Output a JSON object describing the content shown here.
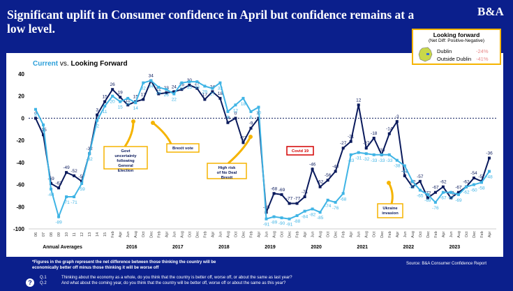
{
  "header": {
    "title": "Significant uplift in Consumer confidence in April but confidence remains at a low level.",
    "logo": "B&A"
  },
  "legend": {
    "title": "Looking forward",
    "subtitle": "(Net Diff: Positive-Negative)",
    "dublin_label": "Dublin",
    "dublin_value": "-24%",
    "outside_label": "Outside Dublin",
    "outside_value": "-41%"
  },
  "footer": {
    "note": "*Figures in the graph represent the net difference between those thinking the country will be economically better off minus those thinking it will be worse off",
    "source": "Source: B&A Consumer Confidence Report",
    "q1_label": "Q.1",
    "q1": "Thinking about the economy as a whole, do you think that the country is better off, worse off, or about the same as last year?",
    "q2_label": "Q.2",
    "q2": "And what about the coming year, do you think that the country will be better off, worse off or about the same as this year?",
    "icon": "?"
  },
  "chart_data": {
    "type": "line",
    "title": "Current vs. Looking Forward",
    "title_current": "Current",
    "title_vs": "vs.",
    "title_forward": "Looking Forward",
    "ylim": [
      -100,
      40
    ],
    "yticks": [
      40,
      20,
      0,
      -20,
      -40,
      -60,
      -80,
      -100
    ],
    "colors": {
      "current": "#0a1a5c",
      "forward": "#3fb4e5",
      "axis_text": "#000"
    },
    "x": [
      "06",
      "07",
      "08",
      "09",
      "10",
      "11",
      "12",
      "13",
      "14",
      "15",
      "Feb",
      "Apr",
      "Jun",
      "Aug",
      "Oct",
      "Dec",
      "Feb",
      "Apr",
      "Jun",
      "Aug",
      "Oct",
      "Dec",
      "Feb",
      "Apr",
      "Jun",
      "Aug",
      "Oct",
      "Dec",
      "Feb",
      "Apr",
      "Jun",
      "Aug",
      "Oct",
      "Dec",
      "Feb",
      "Apr",
      "Jun",
      "Aug",
      "Oct",
      "Dec",
      "Feb",
      "Apr",
      "Jun",
      "Aug",
      "Oct",
      "Dec",
      "Feb",
      "Apr",
      "Jun",
      "Aug",
      "Oct",
      "Dec",
      "Feb",
      "Apr",
      "Jun",
      "Aug",
      "Oct",
      "Dec",
      "Feb",
      "Apr"
    ],
    "year_labels": [
      {
        "label": "Annual Averages",
        "at": 3.5
      },
      {
        "label": "2016",
        "at": 12.5
      },
      {
        "label": "2017",
        "at": 18.5
      },
      {
        "label": "2018",
        "at": 24.5
      },
      {
        "label": "2019",
        "at": 30.5
      },
      {
        "label": "2020",
        "at": 36.5
      },
      {
        "label": "2021",
        "at": 42.5
      },
      {
        "label": "2022",
        "at": 48.5
      },
      {
        "label": "2023",
        "at": 54.5
      }
    ],
    "series": [
      {
        "name": "Current",
        "values": [
          0,
          -15,
          -59,
          -63,
          -49,
          -52,
          -57,
          -32,
          3,
          15,
          26,
          19,
          12,
          15,
          17,
          34,
          22,
          23,
          24,
          26,
          30,
          27,
          17,
          24,
          18,
          -4,
          0,
          -22,
          -9,
          0,
          -85,
          -68,
          -69,
          -77,
          -77,
          -71,
          -46,
          -62,
          -56,
          -48,
          -27,
          -21,
          12,
          -27,
          -18,
          -33,
          -14,
          -3,
          -52,
          -62,
          -57,
          -72,
          -67,
          -62,
          -72,
          -67,
          -62,
          -54,
          -57,
          -36
        ],
        "labels": [
          "0",
          "-15",
          "-59",
          "-63",
          "-49",
          "-52",
          "-57",
          "-32",
          "3",
          "15",
          "26",
          "19",
          "12",
          "15",
          "17",
          "34",
          "22",
          "23",
          "24",
          "26",
          "30",
          "27",
          "17",
          "24",
          "18",
          "-4",
          "0",
          "-22",
          "-9",
          "0",
          "-85",
          "-68",
          "-69",
          "-77",
          "-77",
          "-71",
          "-46",
          "-62",
          "-56",
          "-48",
          "-27",
          "-21",
          "12",
          "-27",
          "-18",
          "-33",
          "-14",
          "-3",
          "-52",
          "-62",
          "-57",
          "-72",
          "-67",
          "-62",
          "-72",
          "-67",
          "-62",
          "-54",
          "-57",
          "-36"
        ]
      },
      {
        "name": "Looking Forward",
        "values": [
          8,
          -6,
          -64,
          -89,
          -71,
          -71,
          -59,
          -32,
          -2,
          11,
          20,
          15,
          18,
          14,
          32,
          34,
          28,
          26,
          22,
          32,
          33,
          33,
          29,
          27,
          32,
          6,
          12,
          18,
          6,
          10,
          -91,
          -89,
          -90,
          -91,
          -88,
          -84,
          -82,
          -85,
          -74,
          -76,
          -68,
          -33,
          -31,
          -32,
          -33,
          -33,
          -33,
          -38,
          -43,
          -57,
          -65,
          -69,
          -76,
          -67,
          -67,
          -69,
          -62,
          -60,
          -58,
          -48
        ],
        "labels": [
          "8",
          "-6",
          "-64",
          "-89",
          "-71",
          "-71",
          "-59",
          "-32",
          "-2",
          "11",
          "20",
          "15",
          "18",
          "14",
          "32",
          "34",
          "28",
          "26",
          "22",
          "32",
          "33",
          "33",
          "29",
          "27",
          "32",
          "6",
          "12",
          "18",
          "6",
          "10",
          "-91",
          "-89",
          "-90",
          "-91",
          "-88",
          "-84",
          "-82",
          "-85",
          "-74",
          "-76",
          "-68",
          "-33",
          "-31",
          "-32",
          "-33",
          "-33",
          "-33",
          "-38",
          "-43",
          "-57",
          "-65",
          "-69",
          "-76",
          "-67",
          "-67",
          "-69",
          "-62",
          "-60",
          "-58",
          "-48"
        ]
      }
    ],
    "annotations": [
      {
        "text": "Govt uncertainty following General Election",
        "at": 11.5,
        "style": "yellow"
      },
      {
        "text": "Brexit vote",
        "at": 14,
        "style": "yellow"
      },
      {
        "text": "High risk of No Deal Brexit",
        "at": 27,
        "style": "yellow"
      },
      {
        "text": "Covid 19",
        "at": 30,
        "style": "red"
      },
      {
        "text": "Ukraine invasion",
        "at": 47,
        "style": "yellow"
      }
    ]
  }
}
